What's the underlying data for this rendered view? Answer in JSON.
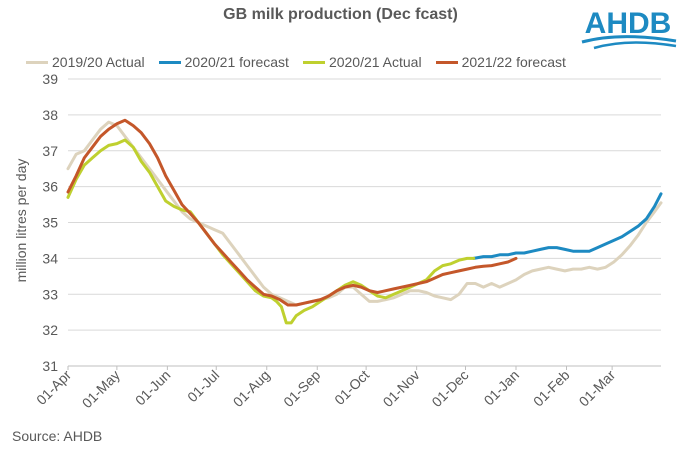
{
  "title": "GB milk production (Dec fcast)",
  "logo_text": "AHDB",
  "source": "Source: AHDB",
  "chart_data": {
    "type": "line",
    "title": "GB milk production (Dec fcast)",
    "xlabel": "",
    "ylabel": "million litres per day",
    "ylim": [
      31,
      39
    ],
    "yticks": [
      31,
      32,
      33,
      34,
      35,
      36,
      37,
      38,
      39
    ],
    "xlim": [
      0,
      364
    ],
    "xticks": [
      {
        "label": "01-Apr",
        "day": 0
      },
      {
        "label": "01-May",
        "day": 30
      },
      {
        "label": "01-Jun",
        "day": 61
      },
      {
        "label": "01-Jul",
        "day": 91
      },
      {
        "label": "01-Aug",
        "day": 122
      },
      {
        "label": "01-Sep",
        "day": 153
      },
      {
        "label": "01-Oct",
        "day": 183
      },
      {
        "label": "01-Nov",
        "day": 214
      },
      {
        "label": "01-Dec",
        "day": 244
      },
      {
        "label": "01-Jan",
        "day": 275
      },
      {
        "label": "01-Feb",
        "day": 306
      },
      {
        "label": "01-Mar",
        "day": 334
      }
    ],
    "grid": true,
    "legend_position": "top",
    "series": [
      {
        "name": "2019/20 Actual",
        "color": "#DDD3BD",
        "points": [
          [
            0,
            36.5
          ],
          [
            5,
            36.9
          ],
          [
            10,
            37.0
          ],
          [
            15,
            37.3
          ],
          [
            20,
            37.6
          ],
          [
            25,
            37.8
          ],
          [
            30,
            37.7
          ],
          [
            35,
            37.4
          ],
          [
            40,
            37.1
          ],
          [
            45,
            36.8
          ],
          [
            50,
            36.5
          ],
          [
            55,
            36.2
          ],
          [
            60,
            35.9
          ],
          [
            65,
            35.6
          ],
          [
            70,
            35.3
          ],
          [
            75,
            35.1
          ],
          [
            80,
            35.0
          ],
          [
            85,
            34.9
          ],
          [
            90,
            34.8
          ],
          [
            95,
            34.7
          ],
          [
            100,
            34.4
          ],
          [
            105,
            34.1
          ],
          [
            110,
            33.8
          ],
          [
            115,
            33.5
          ],
          [
            120,
            33.2
          ],
          [
            125,
            33.0
          ],
          [
            130,
            32.9
          ],
          [
            135,
            32.8
          ],
          [
            140,
            32.7
          ],
          [
            145,
            32.75
          ],
          [
            150,
            32.8
          ],
          [
            155,
            32.85
          ],
          [
            160,
            32.9
          ],
          [
            165,
            33.0
          ],
          [
            170,
            33.2
          ],
          [
            175,
            33.2
          ],
          [
            180,
            33.0
          ],
          [
            185,
            32.8
          ],
          [
            190,
            32.8
          ],
          [
            195,
            32.85
          ],
          [
            200,
            32.9
          ],
          [
            205,
            33.0
          ],
          [
            210,
            33.1
          ],
          [
            215,
            33.1
          ],
          [
            220,
            33.05
          ],
          [
            225,
            32.95
          ],
          [
            230,
            32.9
          ],
          [
            235,
            32.85
          ],
          [
            240,
            33.0
          ],
          [
            245,
            33.3
          ],
          [
            250,
            33.3
          ],
          [
            255,
            33.2
          ],
          [
            260,
            33.3
          ],
          [
            265,
            33.2
          ],
          [
            270,
            33.3
          ],
          [
            275,
            33.4
          ],
          [
            280,
            33.55
          ],
          [
            285,
            33.65
          ],
          [
            290,
            33.7
          ],
          [
            295,
            33.75
          ],
          [
            300,
            33.7
          ],
          [
            305,
            33.65
          ],
          [
            310,
            33.7
          ],
          [
            315,
            33.7
          ],
          [
            320,
            33.75
          ],
          [
            325,
            33.7
          ],
          [
            330,
            33.75
          ],
          [
            335,
            33.9
          ],
          [
            340,
            34.1
          ],
          [
            345,
            34.35
          ],
          [
            350,
            34.65
          ],
          [
            355,
            35.0
          ],
          [
            360,
            35.3
          ],
          [
            364,
            35.55
          ]
        ]
      },
      {
        "name": "2020/21 forecast",
        "color": "#1D8AC2",
        "points": [
          [
            249,
            34.0
          ],
          [
            255,
            34.05
          ],
          [
            260,
            34.05
          ],
          [
            265,
            34.1
          ],
          [
            270,
            34.1
          ],
          [
            275,
            34.15
          ],
          [
            280,
            34.15
          ],
          [
            285,
            34.2
          ],
          [
            290,
            34.25
          ],
          [
            295,
            34.3
          ],
          [
            300,
            34.3
          ],
          [
            305,
            34.25
          ],
          [
            310,
            34.2
          ],
          [
            315,
            34.2
          ],
          [
            320,
            34.2
          ],
          [
            325,
            34.3
          ],
          [
            330,
            34.4
          ],
          [
            335,
            34.5
          ],
          [
            340,
            34.6
          ],
          [
            345,
            34.75
          ],
          [
            350,
            34.9
          ],
          [
            355,
            35.1
          ],
          [
            360,
            35.45
          ],
          [
            364,
            35.8
          ]
        ]
      },
      {
        "name": "2020/21 Actual",
        "color": "#BFD02F",
        "points": [
          [
            0,
            35.7
          ],
          [
            5,
            36.2
          ],
          [
            10,
            36.6
          ],
          [
            15,
            36.8
          ],
          [
            20,
            37.0
          ],
          [
            25,
            37.15
          ],
          [
            30,
            37.2
          ],
          [
            35,
            37.3
          ],
          [
            40,
            37.1
          ],
          [
            45,
            36.7
          ],
          [
            50,
            36.4
          ],
          [
            55,
            36.0
          ],
          [
            60,
            35.6
          ],
          [
            65,
            35.45
          ],
          [
            70,
            35.35
          ],
          [
            75,
            35.3
          ],
          [
            80,
            35.0
          ],
          [
            85,
            34.7
          ],
          [
            90,
            34.4
          ],
          [
            95,
            34.1
          ],
          [
            100,
            33.85
          ],
          [
            105,
            33.6
          ],
          [
            110,
            33.35
          ],
          [
            115,
            33.1
          ],
          [
            120,
            32.95
          ],
          [
            125,
            32.9
          ],
          [
            128,
            32.8
          ],
          [
            131,
            32.65
          ],
          [
            134,
            32.2
          ],
          [
            137,
            32.2
          ],
          [
            140,
            32.4
          ],
          [
            145,
            32.55
          ],
          [
            150,
            32.65
          ],
          [
            155,
            32.8
          ],
          [
            160,
            32.95
          ],
          [
            165,
            33.1
          ],
          [
            170,
            33.25
          ],
          [
            175,
            33.35
          ],
          [
            180,
            33.25
          ],
          [
            185,
            33.1
          ],
          [
            190,
            32.95
          ],
          [
            195,
            32.9
          ],
          [
            200,
            33.0
          ],
          [
            205,
            33.1
          ],
          [
            210,
            33.2
          ],
          [
            215,
            33.3
          ],
          [
            220,
            33.4
          ],
          [
            225,
            33.65
          ],
          [
            230,
            33.8
          ],
          [
            235,
            33.85
          ],
          [
            240,
            33.95
          ],
          [
            245,
            34.0
          ],
          [
            249,
            34.0
          ]
        ]
      },
      {
        "name": "2021/22 forecast",
        "color": "#C4572A",
        "points": [
          [
            0,
            35.85
          ],
          [
            5,
            36.3
          ],
          [
            10,
            36.8
          ],
          [
            15,
            37.1
          ],
          [
            20,
            37.4
          ],
          [
            25,
            37.6
          ],
          [
            30,
            37.75
          ],
          [
            35,
            37.85
          ],
          [
            40,
            37.7
          ],
          [
            45,
            37.5
          ],
          [
            50,
            37.2
          ],
          [
            55,
            36.8
          ],
          [
            60,
            36.3
          ],
          [
            65,
            35.9
          ],
          [
            70,
            35.5
          ],
          [
            75,
            35.25
          ],
          [
            80,
            35.0
          ],
          [
            85,
            34.7
          ],
          [
            90,
            34.4
          ],
          [
            95,
            34.15
          ],
          [
            100,
            33.9
          ],
          [
            105,
            33.65
          ],
          [
            110,
            33.4
          ],
          [
            115,
            33.2
          ],
          [
            120,
            33.0
          ],
          [
            125,
            32.95
          ],
          [
            130,
            32.85
          ],
          [
            135,
            32.7
          ],
          [
            140,
            32.7
          ],
          [
            145,
            32.75
          ],
          [
            150,
            32.8
          ],
          [
            155,
            32.85
          ],
          [
            160,
            32.95
          ],
          [
            165,
            33.1
          ],
          [
            170,
            33.2
          ],
          [
            175,
            33.25
          ],
          [
            180,
            33.2
          ],
          [
            185,
            33.1
          ],
          [
            190,
            33.05
          ],
          [
            195,
            33.1
          ],
          [
            200,
            33.15
          ],
          [
            205,
            33.2
          ],
          [
            210,
            33.25
          ],
          [
            215,
            33.3
          ],
          [
            220,
            33.35
          ],
          [
            225,
            33.45
          ],
          [
            230,
            33.55
          ],
          [
            235,
            33.6
          ],
          [
            240,
            33.65
          ],
          [
            245,
            33.7
          ],
          [
            250,
            33.75
          ],
          [
            255,
            33.78
          ],
          [
            260,
            33.8
          ],
          [
            265,
            33.85
          ],
          [
            270,
            33.9
          ],
          [
            275,
            34.0
          ]
        ]
      }
    ]
  }
}
